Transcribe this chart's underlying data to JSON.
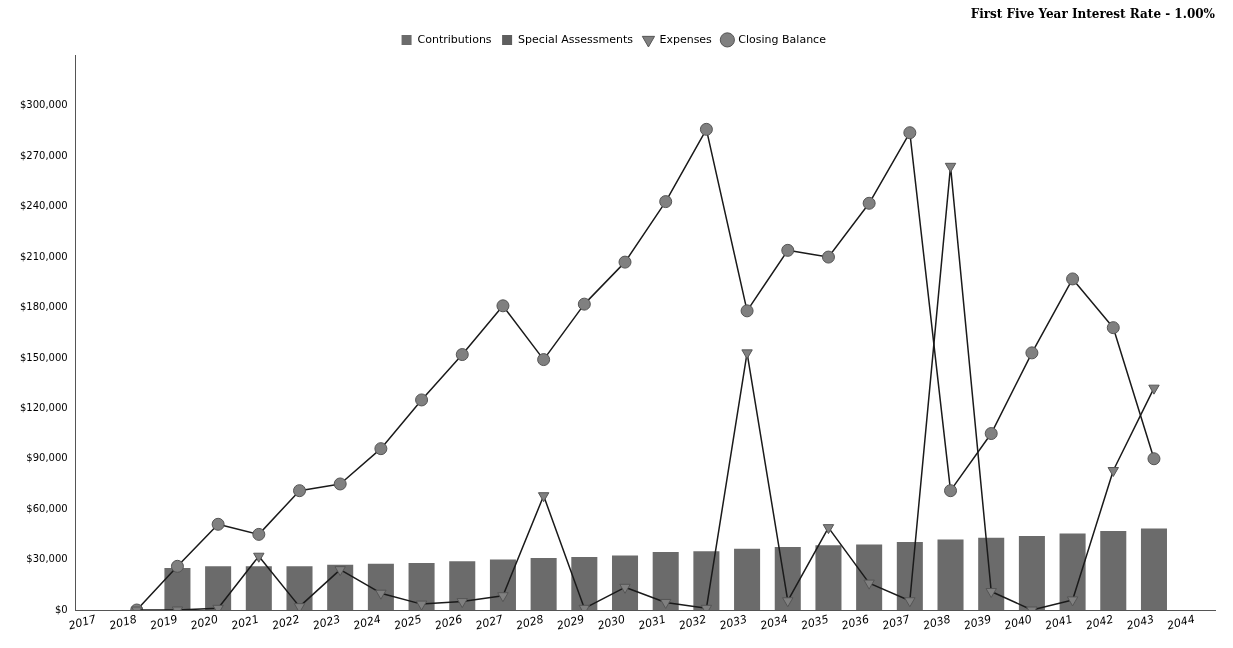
{
  "chart_data": {
    "type": "bar",
    "title": "First Five Year Interest Rate - 1.00%",
    "categories": [
      "2017",
      "2018",
      "2019",
      "2020",
      "2021",
      "2022",
      "2023",
      "2024",
      "2025",
      "2026",
      "2027",
      "2028",
      "2029",
      "2030",
      "2031",
      "2032",
      "2033",
      "2034",
      "2035",
      "2036",
      "2037",
      "2038",
      "2039",
      "2040",
      "2041",
      "2042",
      "2043",
      "2044"
    ],
    "series": [
      {
        "name": "Contributions",
        "color": "#6b6b6b",
        "values": [
          null,
          null,
          25000,
          26000,
          26000,
          26000,
          27000,
          27500,
          28000,
          29000,
          30000,
          31000,
          31500,
          32500,
          34500,
          35000,
          36500,
          37500,
          38500,
          39000,
          40500,
          42000,
          43000,
          44000,
          45500,
          47000,
          48500,
          null
        ]
      },
      {
        "name": "Special Assessments",
        "color": "#5e5e5e",
        "values": [
          null,
          null,
          null,
          null,
          null,
          null,
          null,
          null,
          null,
          null,
          null,
          null,
          null,
          null,
          null,
          null,
          null,
          null,
          null,
          null,
          null,
          null,
          null,
          null,
          null,
          null,
          null,
          null
        ]
      },
      {
        "name": "Expenses",
        "type": "line",
        "marker": "triangle",
        "color": "#1a1a1a",
        "values": [
          null,
          0,
          0,
          1000,
          32000,
          2000,
          24000,
          10000,
          3500,
          5000,
          8500,
          68000,
          1000,
          13500,
          4500,
          1000,
          153000,
          5500,
          49000,
          16000,
          5500,
          264000,
          11000,
          0,
          6000,
          83000,
          132000,
          null
        ]
      },
      {
        "name": "Closing Balance",
        "type": "line",
        "marker": "circle",
        "color": "#1a1a1a",
        "values": [
          null,
          0,
          26000,
          51000,
          45000,
          71000,
          75000,
          96000,
          125000,
          152000,
          181000,
          149000,
          182000,
          207000,
          243000,
          286000,
          178000,
          214000,
          210000,
          242000,
          284000,
          71000,
          105000,
          153000,
          197000,
          168000,
          90000,
          null
        ]
      }
    ],
    "ylim": [
      0,
      330000
    ],
    "yticks": [
      {
        "value": 0,
        "label": "$0"
      },
      {
        "value": 30000,
        "label": "$30,000"
      },
      {
        "value": 60000,
        "label": "$60,000"
      },
      {
        "value": 90000,
        "label": "$90,000"
      },
      {
        "value": 120000,
        "label": "$120,000"
      },
      {
        "value": 150000,
        "label": "$150,000"
      },
      {
        "value": 180000,
        "label": "$180,000"
      },
      {
        "value": 210000,
        "label": "$210,000"
      },
      {
        "value": 240000,
        "label": "$240,000"
      },
      {
        "value": 270000,
        "label": "$270,000"
      },
      {
        "value": 300000,
        "label": "$300,000"
      }
    ],
    "grid": false,
    "legend": "top"
  }
}
